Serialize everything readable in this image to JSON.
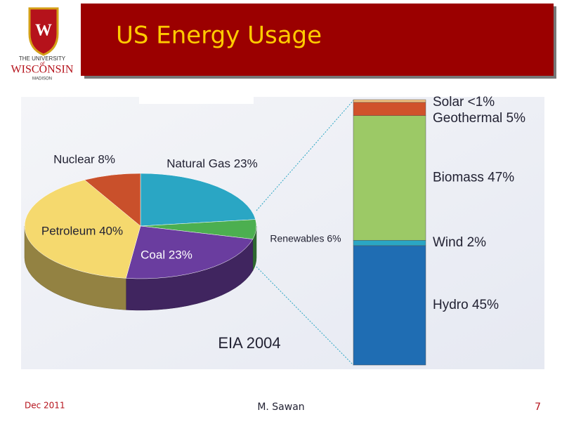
{
  "slide": {
    "title": "US Energy Usage",
    "date": "Dec 2011",
    "author": "M. Sawan",
    "page": "7",
    "source": "EIA 2004"
  },
  "logo": {
    "line1": "THE UNIVERSITY",
    "line2": "of",
    "line3": "WISCONSIN",
    "line4": "MADISON",
    "crest": "W"
  },
  "chart_data": [
    {
      "type": "pie",
      "values": [
        23,
        6,
        23,
        40,
        8
      ],
      "value_labels": [
        "Natural Gas 23%",
        "Renewables 6%",
        "Coal 23%",
        "Petroleum 40%",
        "Nuclear 8%"
      ],
      "colors": [
        "#2aa6c4",
        "#4caf50",
        "#6a3d9f",
        "#f5d96e",
        "#c9502b"
      ]
    },
    {
      "type": "stacked-bar",
      "values": [
        45,
        2,
        47,
        5,
        1
      ],
      "value_labels": [
        "Hydro 45%",
        "Wind 2%",
        "Biomass 47%",
        "Geothermal 5%",
        "Solar <1%"
      ],
      "colors": [
        "#1f6db3",
        "#2aa6c4",
        "#9cc966",
        "#d0522b",
        "#f3c07c"
      ]
    }
  ]
}
